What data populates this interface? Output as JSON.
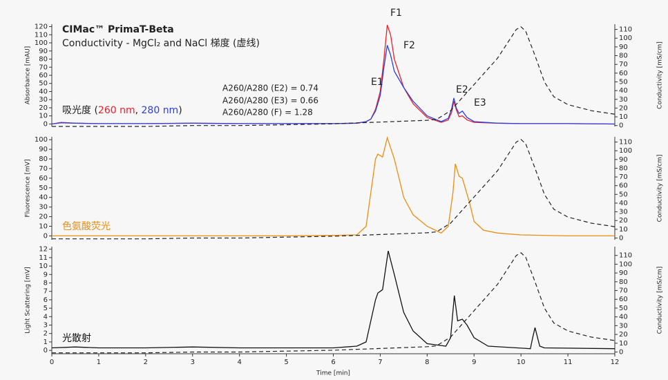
{
  "chart_data": [
    {
      "type": "line",
      "title": "CIMac™ PrimaT-Beta",
      "subtitle": "Conductivity - MgCl₂ and NaCl 梯度 (虚线)",
      "ylabel": "Absorbance [mAU]",
      "y2label": "Conductivity [mS/cm]",
      "legend_prefix": "吸光度 (",
      "legend_separator": ", ",
      "legend_suffix": ")",
      "annotations": [
        "F1",
        "F2",
        "E1",
        "E2",
        "E3",
        "A260/A280 (E2) = 0.74",
        "A260/A280 (E3) = 0.66",
        "A260/A280 (F) = 1.28"
      ],
      "xlim": [
        0,
        12
      ],
      "ylim": [
        -3,
        123
      ],
      "yticks": [
        0,
        10,
        20,
        30,
        40,
        50,
        60,
        70,
        80,
        90,
        100,
        110,
        120
      ],
      "y2lim": [
        -1,
        116
      ],
      "y2ticks": [
        0,
        10,
        20,
        30,
        40,
        50,
        60,
        70,
        80,
        90,
        100,
        110
      ],
      "series": [
        {
          "name": "260 nm",
          "color": "#e8202a",
          "x": [
            0,
            0.2,
            0.5,
            1,
            2,
            3,
            4,
            5,
            6,
            6.5,
            6.7,
            6.8,
            6.9,
            7.0,
            7.08,
            7.15,
            7.22,
            7.3,
            7.5,
            7.7,
            8.0,
            8.3,
            8.45,
            8.52,
            8.57,
            8.62,
            8.68,
            8.75,
            8.85,
            9.0,
            9.5,
            10,
            11,
            12
          ],
          "values": [
            0,
            2,
            1,
            0.5,
            0.5,
            1,
            0.5,
            0.5,
            0.5,
            1,
            3,
            6,
            18,
            40,
            80,
            122,
            110,
            80,
            45,
            25,
            8,
            2,
            5,
            14,
            28,
            18,
            9,
            10,
            5,
            2,
            1,
            0.5,
            0.5,
            0
          ]
        },
        {
          "name": "280 nm",
          "color": "#2b3fe0",
          "x": [
            0,
            0.2,
            0.5,
            1,
            2,
            3,
            4,
            5,
            6,
            6.5,
            6.7,
            6.8,
            6.9,
            7.0,
            7.08,
            7.15,
            7.22,
            7.3,
            7.5,
            7.7,
            8.0,
            8.3,
            8.45,
            8.52,
            8.57,
            8.62,
            8.68,
            8.75,
            8.85,
            9.0,
            9.5,
            10,
            11,
            12
          ],
          "values": [
            0,
            1.5,
            1,
            0.5,
            0.5,
            1,
            0.5,
            0.5,
            0.5,
            1,
            3,
            6,
            16,
            35,
            70,
            97,
            85,
            65,
            45,
            28,
            10,
            3,
            7,
            18,
            32,
            20,
            13,
            16,
            8,
            3,
            1,
            0.5,
            0.5,
            0
          ]
        },
        {
          "color": "#222222",
          "dashed": true,
          "axis": "y2",
          "x": [
            0,
            1,
            2,
            3,
            4,
            5,
            6,
            6.5,
            7,
            7.5,
            8,
            8.2,
            8.5,
            9,
            9.5,
            9.9,
            10,
            10.1,
            10.3,
            10.5,
            10.7,
            11,
            11.5,
            12
          ],
          "values": [
            -1,
            -1,
            -1,
            0,
            0,
            1,
            2,
            3,
            4,
            5,
            6,
            7,
            17,
            47,
            77,
            110,
            113,
            108,
            80,
            50,
            33,
            24,
            17,
            13
          ]
        }
      ]
    },
    {
      "type": "line",
      "ylabel": "Fluorescence [mV]",
      "y2label": "Conductivity [mS/cm]",
      "label": "色氨酸荧光",
      "xlim": [
        0,
        12
      ],
      "ylim": [
        -4,
        103
      ],
      "yticks": [
        0,
        10,
        20,
        30,
        40,
        50,
        60,
        70,
        80,
        90,
        100
      ],
      "y2lim": [
        -2,
        116
      ],
      "y2ticks": [
        0,
        10,
        20,
        30,
        40,
        50,
        60,
        70,
        80,
        90,
        100,
        110
      ],
      "series": [
        {
          "color": "#e88e14",
          "x": [
            0,
            1,
            2,
            3,
            4,
            5,
            6,
            6.5,
            6.7,
            6.8,
            6.9,
            6.95,
            7.05,
            7.15,
            7.3,
            7.5,
            7.7,
            8.0,
            8.3,
            8.45,
            8.55,
            8.6,
            8.68,
            8.75,
            8.9,
            9.0,
            9.2,
            9.5,
            10,
            11,
            12
          ],
          "values": [
            0,
            0,
            0,
            0,
            0,
            0,
            0.5,
            1,
            10,
            45,
            80,
            85,
            82,
            102,
            80,
            40,
            22,
            10,
            3,
            10,
            45,
            75,
            62,
            60,
            35,
            15,
            6,
            3,
            1,
            0,
            0
          ]
        },
        {
          "color": "#222222",
          "dashed": true,
          "axis": "y2",
          "x": [
            0,
            1,
            2,
            3,
            4,
            5,
            6,
            6.5,
            7,
            7.5,
            8,
            8.2,
            8.5,
            9,
            9.5,
            9.9,
            10,
            10.1,
            10.3,
            10.5,
            10.7,
            11,
            11.5,
            12
          ],
          "values": [
            -1,
            -1,
            -1,
            0,
            0,
            1,
            2,
            3,
            4,
            5,
            6,
            7,
            17,
            47,
            77,
            110,
            113,
            108,
            80,
            50,
            33,
            24,
            17,
            13
          ]
        }
      ]
    },
    {
      "type": "line",
      "ylabel": "Light Scattering [mV]",
      "y2label": "Conductivity [mS/cm]",
      "label": "光散射",
      "xlabel": "Time [min]",
      "xlim": [
        0,
        12
      ],
      "xticks": [
        0,
        1,
        2,
        3,
        4,
        5,
        6,
        7,
        8,
        9,
        10,
        11,
        12
      ],
      "ylim": [
        -0.4,
        12.3
      ],
      "yticks": [
        0,
        1,
        2,
        3,
        4,
        5,
        6,
        7,
        8,
        9,
        10,
        11,
        12
      ],
      "y2lim": [
        -2,
        120
      ],
      "y2ticks": [
        0,
        10,
        20,
        30,
        40,
        50,
        60,
        70,
        80,
        90,
        100,
        110
      ],
      "series": [
        {
          "color": "#111111",
          "x": [
            0,
            0.5,
            1,
            2,
            3,
            4,
            5,
            6,
            6.5,
            6.7,
            6.9,
            6.95,
            7.05,
            7.17,
            7.3,
            7.5,
            7.7,
            8.0,
            8.4,
            8.5,
            8.58,
            8.65,
            8.75,
            8.85,
            9.0,
            9.3,
            10.2,
            10.25,
            10.3,
            10.4,
            10.5,
            12
          ],
          "values": [
            0.3,
            0.4,
            0.3,
            0.3,
            0.4,
            0.3,
            0.3,
            0.3,
            0.5,
            1,
            6,
            6.8,
            7.2,
            11.8,
            9,
            4.5,
            2.3,
            0.8,
            0.5,
            1.5,
            6.5,
            3.5,
            3.7,
            3.0,
            1.5,
            0.5,
            0.2,
            1.5,
            2.7,
            0.5,
            0.3,
            0.2
          ]
        },
        {
          "color": "#222222",
          "dashed": true,
          "axis": "y2",
          "x": [
            0,
            1,
            2,
            3,
            4,
            5,
            6,
            6.5,
            7,
            7.5,
            8,
            8.2,
            8.5,
            9,
            9.5,
            9.9,
            10,
            10.1,
            10.3,
            10.5,
            10.7,
            11,
            11.5,
            12
          ],
          "values": [
            -1,
            -1,
            -1,
            0,
            0,
            1,
            2,
            3,
            4,
            5,
            6,
            7,
            17,
            47,
            77,
            110,
            113,
            108,
            80,
            50,
            33,
            24,
            17,
            13
          ]
        }
      ]
    }
  ]
}
